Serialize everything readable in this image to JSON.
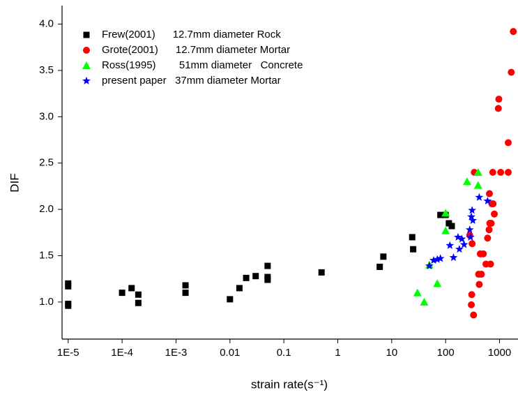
{
  "chart_data": {
    "type": "scatter",
    "xlabel": "strain rate(s⁻¹)",
    "ylabel": "DIF",
    "xscale": "log",
    "xlim": [
      7.7e-06,
      2200
    ],
    "ylim": [
      0.6,
      4.2
    ],
    "xticks": [
      {
        "value": 1e-05,
        "label": "1E-5"
      },
      {
        "value": 0.0001,
        "label": "1E-4"
      },
      {
        "value": 0.001,
        "label": "1E-3"
      },
      0.01,
      0.1,
      1,
      10,
      100,
      1000
    ],
    "yticks": [
      {
        "value": 1,
        "label": "1.0"
      },
      1.5,
      {
        "value": 2,
        "label": "2.0"
      },
      2.5,
      {
        "value": 3,
        "label": "3.0"
      },
      3.5,
      {
        "value": 4,
        "label": "4.0"
      }
    ],
    "legend": "upper left",
    "series": [
      {
        "name": "Frew(2001)      12.7mm diameter Rock",
        "color": "#000000",
        "marker": "square",
        "x": [
          1e-05,
          1e-05,
          1e-05,
          1e-05,
          0.0001,
          0.00015,
          0.0002,
          0.0002,
          0.0015,
          0.0015,
          0.01,
          0.015,
          0.02,
          0.03,
          0.05,
          0.05,
          0.05,
          0.5,
          6,
          7,
          24,
          25,
          80,
          100,
          115,
          130
        ],
        "values": [
          1.2,
          1.17,
          0.98,
          0.96,
          1.1,
          1.15,
          1.08,
          0.99,
          1.18,
          1.1,
          1.03,
          1.15,
          1.26,
          1.28,
          1.39,
          1.27,
          1.24,
          1.32,
          1.38,
          1.49,
          1.7,
          1.57,
          1.94,
          1.94,
          1.85,
          1.82
        ]
      },
      {
        "name": "Grote(2001)      12.7mm diameter Mortar",
        "color": "#ff0000",
        "marker": "circle",
        "x": [
          1800,
          1650,
          1450,
          1450,
          1050,
          750,
          950,
          970,
          330,
          300,
          305,
          310,
          280,
          410,
          420,
          440,
          460,
          500,
          560,
          600,
          640,
          660,
          700,
          720,
          760,
          800,
          650,
          680,
          340
        ],
        "values": [
          3.92,
          3.48,
          2.72,
          2.4,
          2.4,
          2.4,
          3.09,
          3.19,
          0.86,
          0.97,
          1.08,
          1.63,
          1.72,
          1.3,
          1.19,
          1.52,
          1.3,
          1.52,
          1.41,
          1.69,
          1.78,
          1.85,
          1.85,
          2.06,
          2.06,
          1.95,
          2.17,
          1.41,
          2.4
        ]
      },
      {
        "name": "Ross(1995)        51mm diameter   Concrete",
        "color": "#00ff00",
        "marker": "triangle",
        "x": [
          30,
          40,
          50,
          70,
          100,
          100,
          250,
          400,
          400
        ],
        "values": [
          1.1,
          1.0,
          1.4,
          1.2,
          1.77,
          1.96,
          2.3,
          2.4,
          2.26
        ]
      },
      {
        "name": "present paper   37mm diameter Mortar",
        "color": "#0000ff",
        "marker": "star",
        "x": [
          50,
          60,
          70,
          80,
          120,
          140,
          170,
          180,
          200,
          220,
          280,
          290,
          300,
          310,
          320,
          420,
          600
        ],
        "values": [
          1.39,
          1.45,
          1.46,
          1.47,
          1.61,
          1.48,
          1.7,
          1.57,
          1.68,
          1.62,
          1.78,
          1.7,
          1.92,
          1.99,
          1.88,
          2.13,
          2.09
        ]
      }
    ]
  }
}
